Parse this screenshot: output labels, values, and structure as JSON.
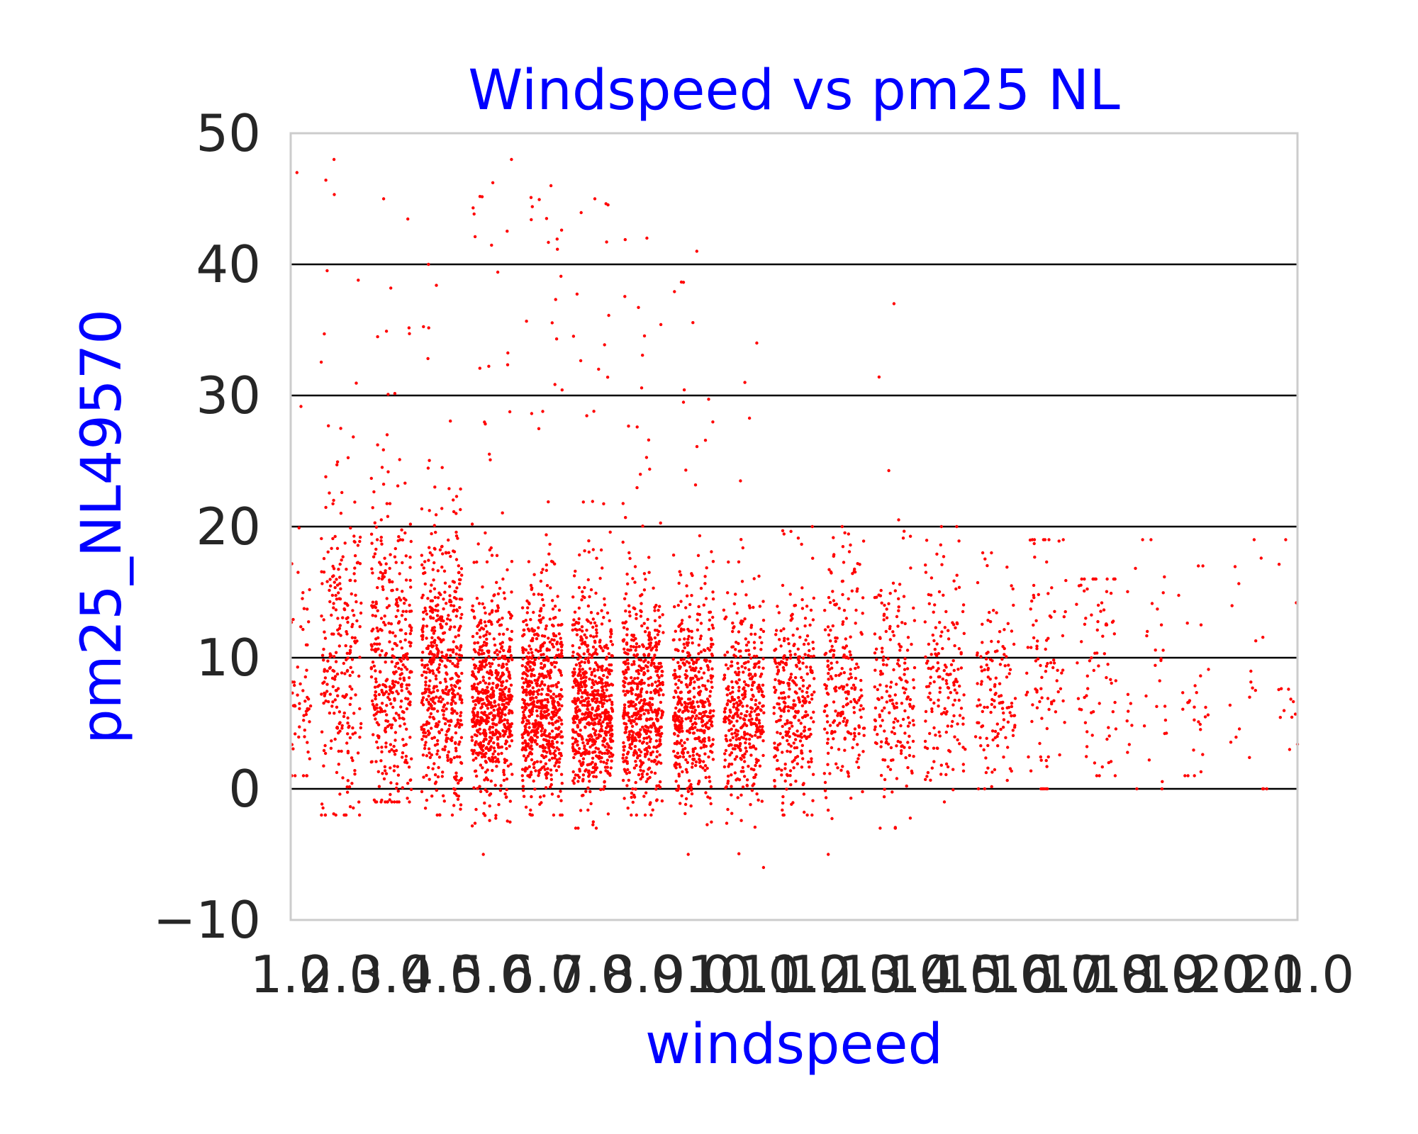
{
  "chart_data": {
    "type": "scatter",
    "title": "Windspeed vs pm25 NL",
    "xlabel": "windspeed",
    "ylabel": "pm25_NL49570",
    "xlim": [
      1.0,
      21.0
    ],
    "ylim": [
      -10,
      50
    ],
    "grid": "horizontal",
    "legend": "none",
    "marker_color": "#ff0000",
    "gridline_color": "#000000",
    "frame_color": "#cccccc",
    "x_tick_labels": [
      "1.0",
      "2.0",
      "3.0",
      "4.0",
      "5.0",
      "6.0",
      "7.0",
      "8.0",
      "9.0",
      "10.0",
      "11.0",
      "12.0",
      "13.0",
      "14.0",
      "15.0",
      "16.0",
      "17.0",
      "18.0",
      "19.0",
      "20.0",
      "21.0"
    ],
    "y_ticks": [
      -10,
      0,
      10,
      20,
      30,
      40,
      50
    ],
    "y_tick_labels": [
      "−10",
      "0",
      "10",
      "20",
      "30",
      "40",
      "50"
    ],
    "windspeed_categories": [
      1,
      2,
      3,
      4,
      5,
      6,
      7,
      8,
      9,
      10,
      11,
      12,
      13,
      14,
      15,
      16,
      17,
      18,
      19,
      20,
      21
    ],
    "points_per_category": [
      60,
      260,
      390,
      520,
      620,
      640,
      640,
      560,
      470,
      380,
      300,
      220,
      190,
      160,
      130,
      90,
      75,
      35,
      28,
      20,
      14
    ],
    "median_pm25_per_category": [
      7,
      9,
      9,
      8,
      6,
      6,
      6,
      6,
      6,
      6,
      6,
      7,
      7,
      7,
      7,
      8,
      8,
      7,
      7,
      7,
      7
    ],
    "pm25_range_per_category": [
      [
        1,
        47
      ],
      [
        -2,
        48
      ],
      [
        -1,
        45
      ],
      [
        -2,
        40
      ],
      [
        -5,
        48
      ],
      [
        -2,
        46
      ],
      [
        -3,
        45
      ],
      [
        -2,
        42
      ],
      [
        -5,
        41
      ],
      [
        -6,
        34
      ],
      [
        -2,
        20
      ],
      [
        -5,
        20
      ],
      [
        -3,
        37
      ],
      [
        -1,
        20
      ],
      [
        0,
        18
      ],
      [
        0,
        19
      ],
      [
        1,
        16
      ],
      [
        0,
        19
      ],
      [
        1,
        17
      ],
      [
        0,
        19
      ],
      [
        3,
        19
      ]
    ],
    "jitter_width": 0.8
  }
}
